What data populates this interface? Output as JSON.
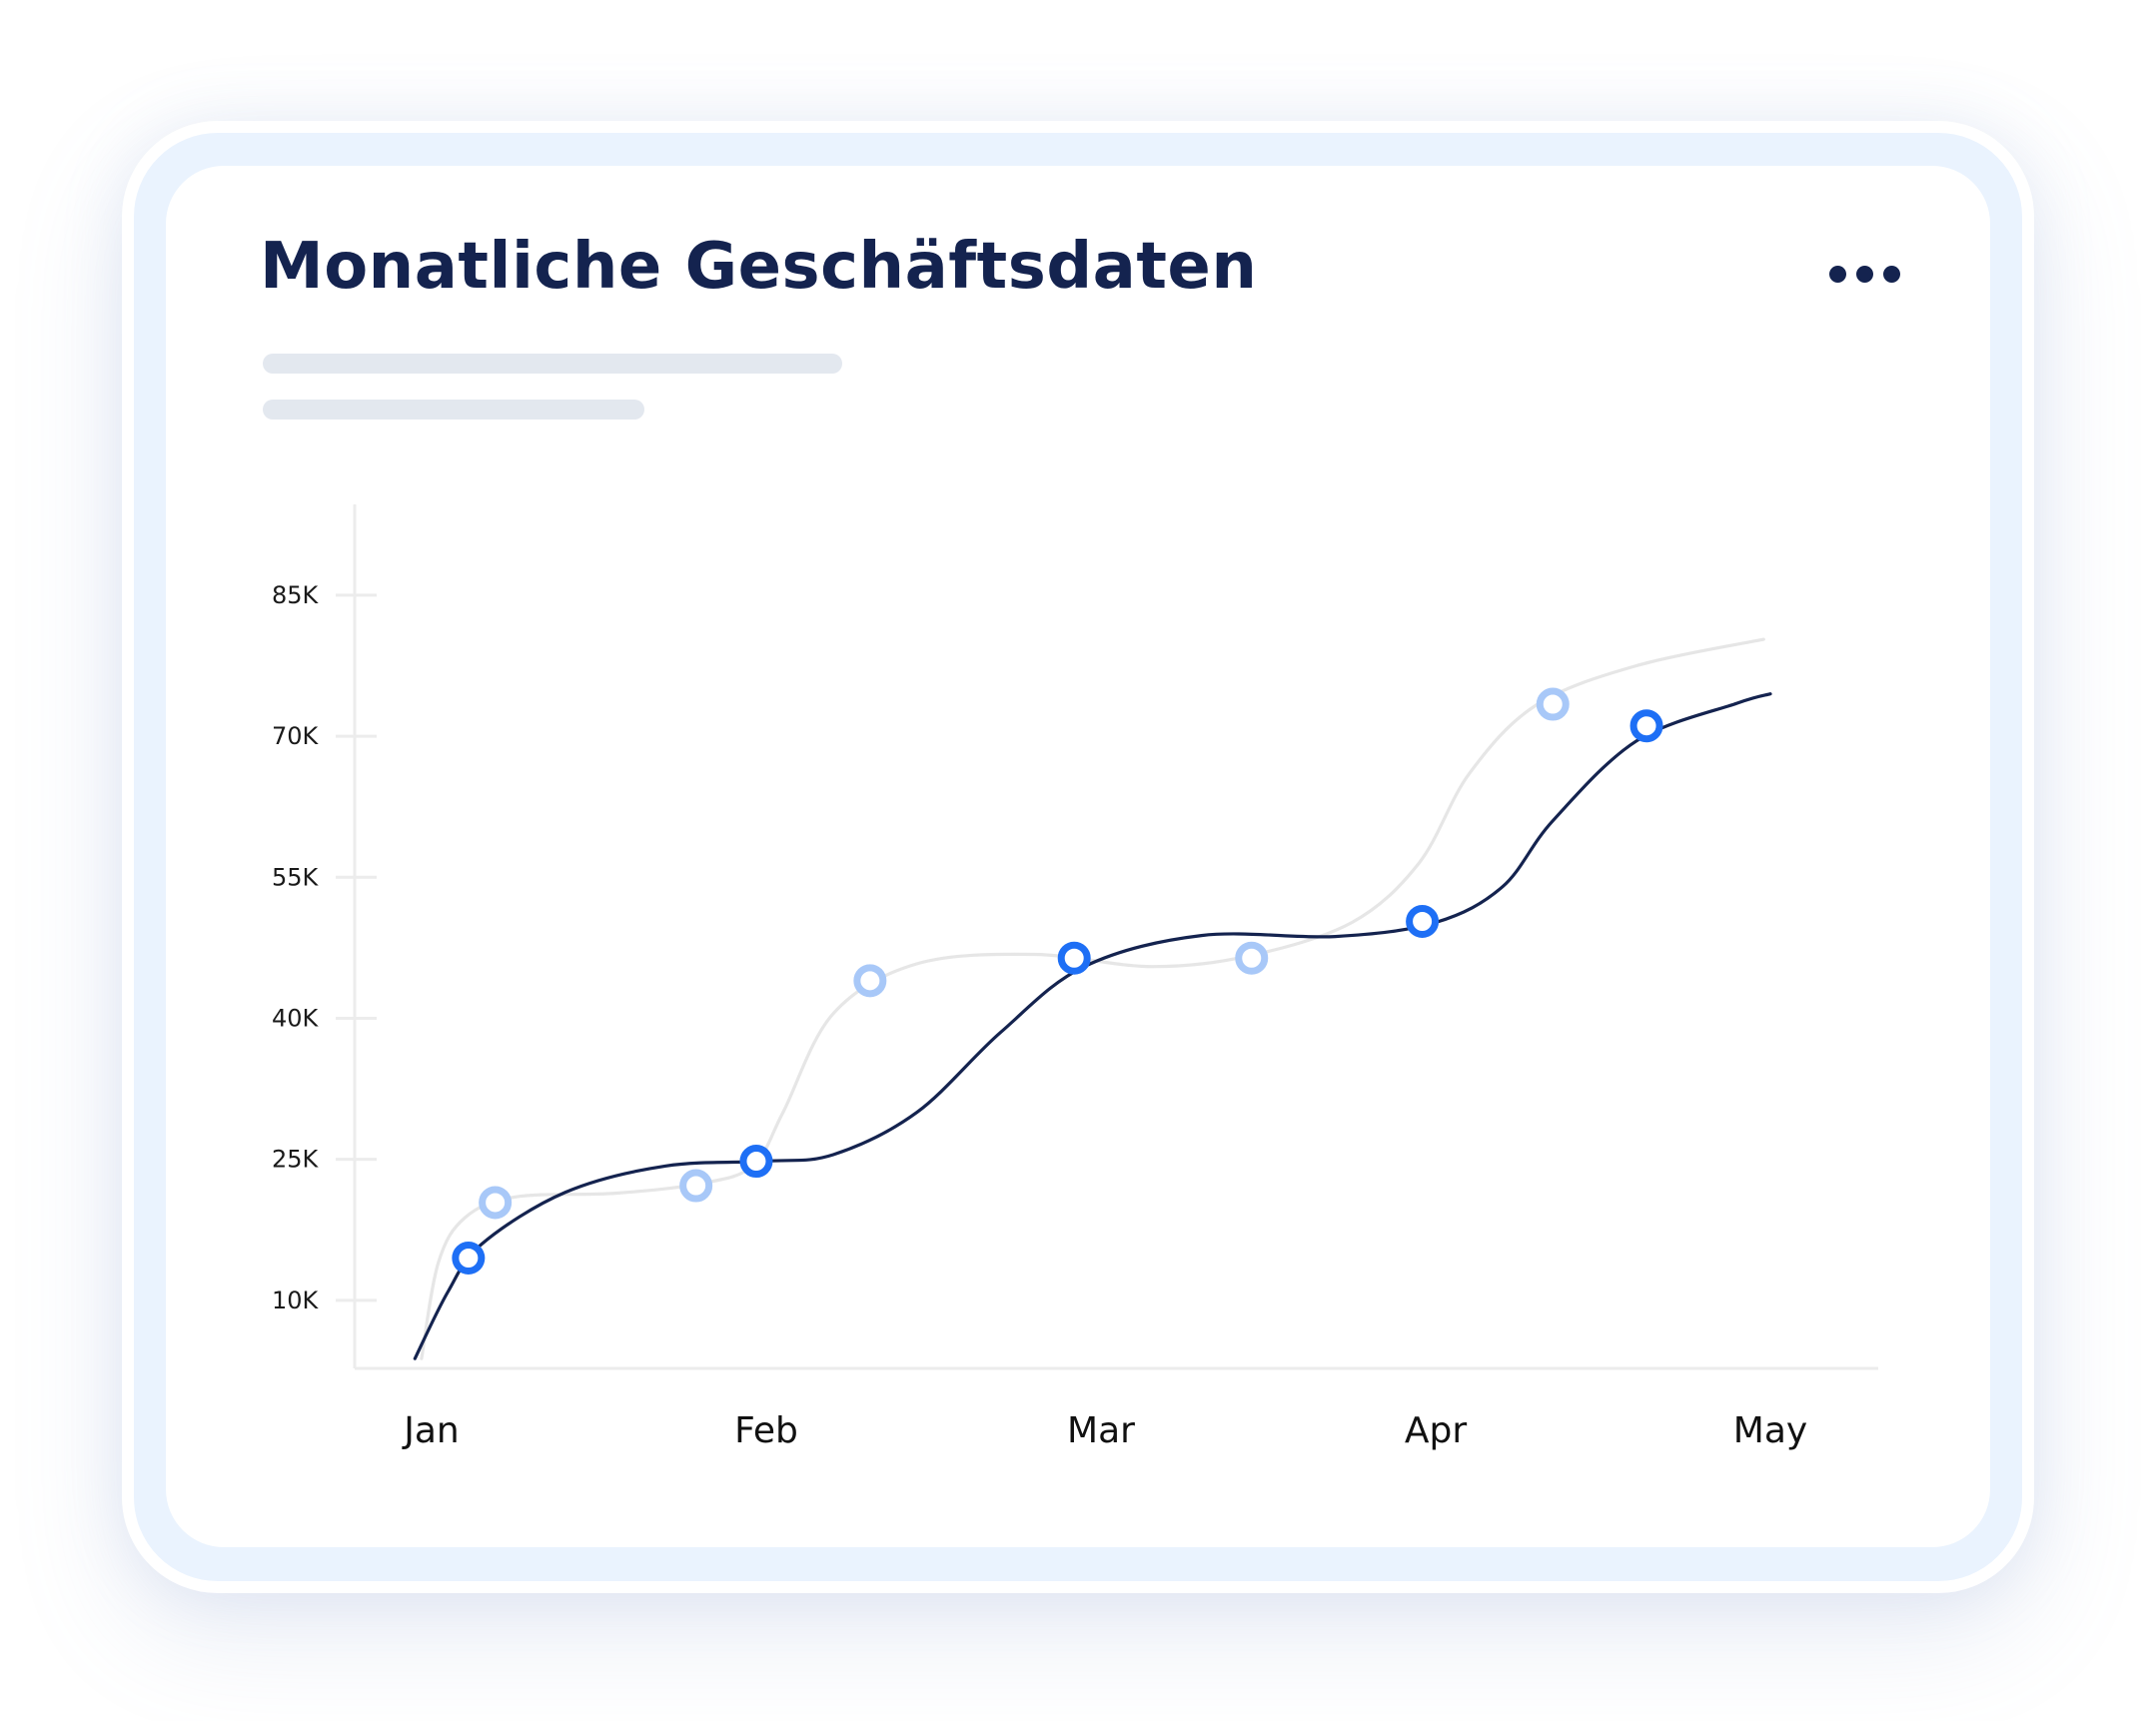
{
  "header": {
    "title": "Monatliche Geschäftsdaten",
    "more_icon": "more-horizontal-icon"
  },
  "colors": {
    "accent": "#1e6ff5",
    "accent_light": "#a8c8f8",
    "line_dark": "#14234f",
    "line_light": "#e6e6e6",
    "title": "#14234f",
    "outer_card": "#eaf3fe"
  },
  "chart_data": {
    "type": "line",
    "title": "Monatliche Geschäftsdaten",
    "xlabel": "",
    "ylabel": "",
    "categories": [
      "Jan",
      "Feb",
      "Mar",
      "Apr",
      "May"
    ],
    "xlim": [
      1,
      5
    ],
    "ylim": [
      0,
      91
    ],
    "y_ticks": [
      10,
      25,
      40,
      55,
      70,
      85
    ],
    "y_tick_labels": [
      "10K",
      "25K",
      "40K",
      "55K",
      "70K",
      "85K"
    ],
    "grid": false,
    "legend": "none",
    "series": [
      {
        "curve": [
          [
            0.95,
            3.8
          ],
          [
            1.05,
            11
          ],
          [
            1.15,
            16
          ],
          [
            1.4,
            21.5
          ],
          [
            1.7,
            24.3
          ],
          [
            2.0,
            24.8
          ],
          [
            2.2,
            25.5
          ],
          [
            2.45,
            30
          ],
          [
            2.7,
            38.5
          ],
          [
            2.95,
            45.5
          ],
          [
            3.3,
            48.8
          ],
          [
            3.7,
            48.7
          ],
          [
            4.0,
            50.2
          ],
          [
            4.2,
            54
          ],
          [
            4.35,
            61
          ],
          [
            4.6,
            69.5
          ],
          [
            4.9,
            73.5
          ],
          [
            5.0,
            74.5
          ]
        ],
        "markers": [
          [
            1.11,
            14.5
          ],
          [
            1.97,
            24.8
          ],
          [
            2.92,
            46.4
          ],
          [
            3.96,
            50.3
          ],
          [
            4.63,
            71.1
          ]
        ]
      },
      {
        "curve": [
          [
            0.97,
            3.8
          ],
          [
            1.02,
            14
          ],
          [
            1.1,
            18.8
          ],
          [
            1.25,
            21
          ],
          [
            1.55,
            21.4
          ],
          [
            1.8,
            22.4
          ],
          [
            1.96,
            24.3
          ],
          [
            2.05,
            30
          ],
          [
            2.2,
            40.5
          ],
          [
            2.45,
            45.8
          ],
          [
            2.8,
            46.8
          ],
          [
            3.15,
            45.5
          ],
          [
            3.45,
            46.7
          ],
          [
            3.75,
            50.2
          ],
          [
            3.95,
            56.5
          ],
          [
            4.1,
            66
          ],
          [
            4.3,
            73.3
          ],
          [
            4.6,
            77.5
          ],
          [
            4.98,
            80.3
          ]
        ],
        "markers": [
          [
            1.19,
            20.4
          ],
          [
            1.79,
            22.2
          ],
          [
            2.31,
            44.0
          ],
          [
            3.45,
            46.4
          ],
          [
            4.35,
            73.4
          ]
        ]
      }
    ]
  }
}
